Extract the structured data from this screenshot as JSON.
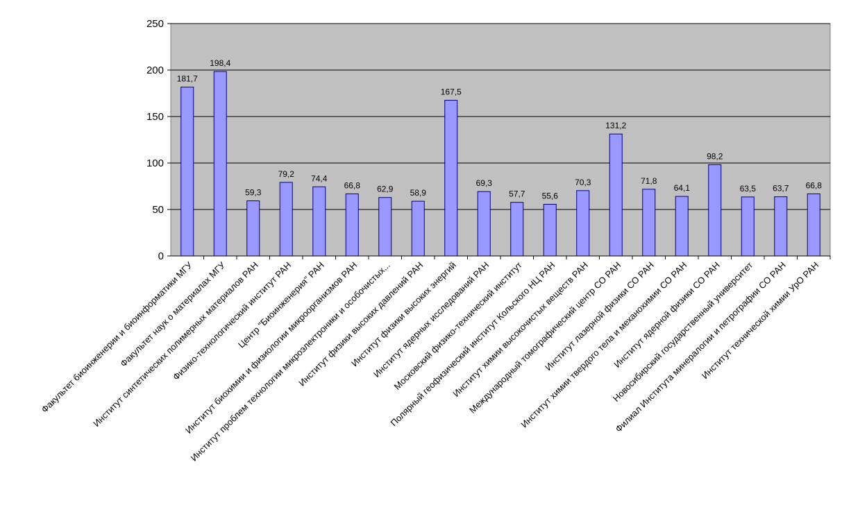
{
  "chart_data": {
    "type": "bar",
    "title": "",
    "xlabel": "",
    "ylabel": "",
    "ylim": [
      0,
      250
    ],
    "yticks": [
      "0",
      "50",
      "100",
      "150",
      "200",
      "250"
    ],
    "grid": true,
    "legend": "none",
    "colors": {
      "plot_background": "#c0c0c0",
      "bar_fill": "#9999ff",
      "bar_stroke": "#000080",
      "gridline": "#000000"
    },
    "categories": [
      "Факультет биоинженерии и биоинформатики МГУ",
      "Факультет наук о материалах МГУ",
      "Институт синтетических полимерных материалов РАН",
      "Физико-технологический институт РАН",
      "Центр \"Биоинженерия\" РАН",
      "Институт биохимии и физиологии микроорганизмов РАН",
      "Институт проблем технологии микроэлектроники и особочистых...",
      "Институт физики высоких давлений РАН",
      "Институт физики высоких энергий",
      "Институт ядерных исследований РАН",
      "Московский физико-технический институт",
      "Полярный геофизический институт Кольского НЦ РАН",
      "Институт химии высокочистых веществ РАН",
      "Международный томографический центр СО РАН",
      "Институт лазерной физики СО РАН",
      "Институт химии твердого тела и механохимии СО РАН",
      "Институт ядерной физики СО РАН",
      "Новосибирский государственный университет",
      "Филиал Института минералогии и петрографии СО РАН",
      "Институт технической химии УрО РАН"
    ],
    "values": [
      181.7,
      198.4,
      59.3,
      79.2,
      74.4,
      66.8,
      62.9,
      58.9,
      167.5,
      69.3,
      57.7,
      55.6,
      70.3,
      131.2,
      71.8,
      64.1,
      98.2,
      63.5,
      63.7,
      66.8
    ],
    "data_labels": [
      "181,7",
      "198,4",
      "59,3",
      "79,2",
      "74,4",
      "66,8",
      "62,9",
      "58,9",
      "167,5",
      "69,3",
      "57,7",
      "55,6",
      "70,3",
      "131,2",
      "71,8",
      "64,1",
      "98,2",
      "63,5",
      "63,7",
      "66,8"
    ]
  }
}
